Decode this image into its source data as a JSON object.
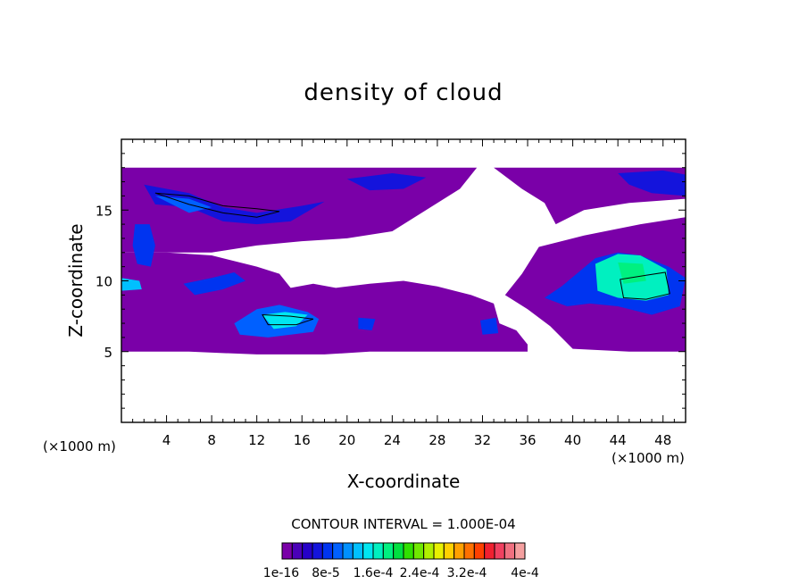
{
  "chart_data": {
    "type": "heatmap",
    "title": "density of cloud",
    "xlabel": "X-coordinate",
    "ylabel": "Z-coordinate",
    "x_units": "(×1000 m)",
    "y_units": "(×1000 m)",
    "xlim": [
      0,
      50
    ],
    "ylim": [
      0,
      20
    ],
    "x_ticks": [
      4,
      8,
      12,
      16,
      20,
      24,
      28,
      32,
      36,
      40,
      44,
      48
    ],
    "y_ticks": [
      5,
      10,
      15
    ],
    "contour_interval_text": "CONTOUR INTERVAL = 1.000E-04",
    "colorbar": {
      "tick_labels": [
        "1e-16",
        "8e-5",
        "1.6e-4",
        "2.4e-4",
        "3.2e-4",
        "4e-4"
      ],
      "colors": [
        "#7a00a8",
        "#4a00b8",
        "#2600c8",
        "#1414dc",
        "#0034f0",
        "#0060ff",
        "#0090ff",
        "#00c0ff",
        "#00e6f0",
        "#00f0c0",
        "#00f080",
        "#00e040",
        "#30e000",
        "#70e800",
        "#b0f000",
        "#e8f000",
        "#ffd000",
        "#ffa000",
        "#ff7000",
        "#ff4000",
        "#f02030",
        "#f04060",
        "#f07080",
        "#f5a0a0"
      ]
    },
    "regions": [
      {
        "name": "upper band",
        "level": 0,
        "polygon": [
          [
            0,
            18
          ],
          [
            31.5,
            18
          ],
          [
            30,
            16.5
          ],
          [
            27,
            15
          ],
          [
            24,
            13.5
          ],
          [
            20,
            13
          ],
          [
            16,
            12.8
          ],
          [
            12,
            12.5
          ],
          [
            8,
            12
          ],
          [
            4,
            12
          ],
          [
            0,
            12
          ]
        ]
      },
      {
        "name": "upper right band",
        "level": 0,
        "polygon": [
          [
            33,
            18
          ],
          [
            50,
            18
          ],
          [
            50,
            15.8
          ],
          [
            45,
            15.5
          ],
          [
            41,
            15
          ],
          [
            38.5,
            14
          ],
          [
            37.5,
            15.5
          ],
          [
            35.5,
            16.5
          ]
        ]
      },
      {
        "name": "right band",
        "level": 0,
        "polygon": [
          [
            37,
            12.4
          ],
          [
            41,
            13.2
          ],
          [
            46,
            14
          ],
          [
            50,
            14.5
          ],
          [
            50,
            5
          ],
          [
            45,
            5
          ],
          [
            40,
            5.2
          ],
          [
            38,
            6.8
          ],
          [
            36,
            8
          ],
          [
            34,
            9
          ],
          [
            35.5,
            10.5
          ]
        ]
      },
      {
        "name": "lower left band",
        "level": 0,
        "polygon": [
          [
            0,
            12
          ],
          [
            4,
            12
          ],
          [
            8,
            11.8
          ],
          [
            12,
            11
          ],
          [
            14,
            10.5
          ],
          [
            15,
            9.5
          ],
          [
            17,
            9.8
          ],
          [
            19,
            9.5
          ],
          [
            22,
            9.8
          ],
          [
            25,
            10
          ],
          [
            28,
            9.6
          ],
          [
            31,
            9
          ],
          [
            33,
            8.4
          ],
          [
            33.5,
            7
          ],
          [
            35,
            6.5
          ],
          [
            36,
            5.5
          ],
          [
            36,
            5
          ],
          [
            22,
            5
          ],
          [
            18,
            4.8
          ],
          [
            12,
            4.8
          ],
          [
            6,
            5
          ],
          [
            0,
            5
          ]
        ]
      },
      {
        "name": "cloud left upper",
        "level": 3,
        "polygon": [
          [
            2,
            16.8
          ],
          [
            6,
            16.2
          ],
          [
            9,
            15.2
          ],
          [
            12,
            14.8
          ],
          [
            16,
            15.3
          ],
          [
            18,
            15.6
          ],
          [
            15,
            14.2
          ],
          [
            12,
            14
          ],
          [
            9,
            14.2
          ],
          [
            6,
            15.2
          ],
          [
            3,
            15.4
          ]
        ]
      },
      {
        "name": "cloud left upper core",
        "level": 5,
        "polygon": [
          [
            3,
            16
          ],
          [
            6,
            15.8
          ],
          [
            8,
            15.2
          ],
          [
            6,
            14.8
          ]
        ]
      },
      {
        "name": "cloud top right",
        "level": 3,
        "polygon": [
          [
            20,
            17.2
          ],
          [
            24,
            17.6
          ],
          [
            27,
            17.3
          ],
          [
            25,
            16.5
          ],
          [
            22,
            16.4
          ]
        ]
      },
      {
        "name": "cloud far right top",
        "level": 3,
        "polygon": [
          [
            44,
            17.6
          ],
          [
            48,
            17.8
          ],
          [
            50,
            17.5
          ],
          [
            50,
            16
          ],
          [
            47,
            16.2
          ],
          [
            45,
            16.8
          ]
        ]
      },
      {
        "name": "cloud left column",
        "level": 4,
        "polygon": [
          [
            1.2,
            14
          ],
          [
            2.5,
            14
          ],
          [
            3,
            12.5
          ],
          [
            2.6,
            11
          ],
          [
            1.4,
            11.2
          ],
          [
            1,
            12.5
          ]
        ]
      },
      {
        "name": "cloud left edge",
        "level": 7,
        "polygon": [
          [
            0,
            10.2
          ],
          [
            1.6,
            10
          ],
          [
            1.8,
            9.4
          ],
          [
            0,
            9.3
          ]
        ]
      },
      {
        "name": "cloud mid-left",
        "level": 4,
        "polygon": [
          [
            5.5,
            9.8
          ],
          [
            8,
            10.2
          ],
          [
            10,
            10.6
          ],
          [
            11,
            10
          ],
          [
            9,
            9.4
          ],
          [
            6.5,
            9
          ]
        ]
      },
      {
        "name": "cloud center-left lower",
        "level": 5,
        "polygon": [
          [
            10,
            7
          ],
          [
            12,
            8
          ],
          [
            14,
            8.3
          ],
          [
            16.5,
            7.8
          ],
          [
            17.5,
            7.3
          ],
          [
            17,
            6.4
          ],
          [
            15,
            6.2
          ],
          [
            13,
            6
          ],
          [
            10.5,
            6.2
          ]
        ]
      },
      {
        "name": "cloud center-left lower core",
        "level": 8,
        "polygon": [
          [
            12.5,
            7.6
          ],
          [
            14.5,
            7.8
          ],
          [
            16.5,
            7.6
          ],
          [
            15.5,
            6.8
          ],
          [
            13.5,
            6.6
          ]
        ]
      },
      {
        "name": "cloud small center",
        "level": 4,
        "polygon": [
          [
            21,
            7.4
          ],
          [
            22.5,
            7.3
          ],
          [
            22.2,
            6.5
          ],
          [
            21,
            6.6
          ]
        ]
      },
      {
        "name": "cloud small center-right",
        "level": 4,
        "polygon": [
          [
            31.8,
            7.2
          ],
          [
            33.2,
            7.4
          ],
          [
            33.4,
            6.3
          ],
          [
            32,
            6.2
          ]
        ]
      },
      {
        "name": "cloud right",
        "level": 4,
        "polygon": [
          [
            37.5,
            8.8
          ],
          [
            39,
            9.6
          ],
          [
            40.5,
            10.6
          ],
          [
            42,
            11.6
          ],
          [
            44,
            12
          ],
          [
            46,
            11.8
          ],
          [
            48.5,
            11
          ],
          [
            50,
            10.2
          ],
          [
            49.5,
            8.2
          ],
          [
            47,
            7.6
          ],
          [
            44,
            8.2
          ],
          [
            41.5,
            8.4
          ],
          [
            39.5,
            8.2
          ]
        ]
      },
      {
        "name": "cloud right core",
        "level": 9,
        "polygon": [
          [
            42,
            11.2
          ],
          [
            44,
            11.9
          ],
          [
            46,
            11.8
          ],
          [
            48.3,
            10.8
          ],
          [
            48.5,
            9
          ],
          [
            46.5,
            8.6
          ],
          [
            44,
            8.8
          ],
          [
            42.2,
            9.3
          ]
        ]
      },
      {
        "name": "cloud right center",
        "level": 10,
        "polygon": [
          [
            44,
            11.3
          ],
          [
            46.2,
            11.2
          ],
          [
            46.5,
            10
          ],
          [
            44.5,
            9.8
          ]
        ]
      }
    ],
    "contour_lines": [
      [
        [
          3,
          16.2
        ],
        [
          6,
          15.4
        ],
        [
          9,
          14.8
        ],
        [
          12,
          14.5
        ],
        [
          14,
          14.9
        ],
        [
          12,
          15.1
        ],
        [
          9,
          15.3
        ],
        [
          6,
          16
        ]
      ],
      [
        [
          44.5,
          8.8
        ],
        [
          46.5,
          8.7
        ],
        [
          48.6,
          9.1
        ],
        [
          48.2,
          10.6
        ],
        [
          46.5,
          10.4
        ],
        [
          44.2,
          10.1
        ]
      ],
      [
        [
          12.5,
          7.6
        ],
        [
          15,
          7.5
        ],
        [
          17,
          7.3
        ],
        [
          15.5,
          6.9
        ],
        [
          13,
          6.9
        ]
      ]
    ]
  }
}
